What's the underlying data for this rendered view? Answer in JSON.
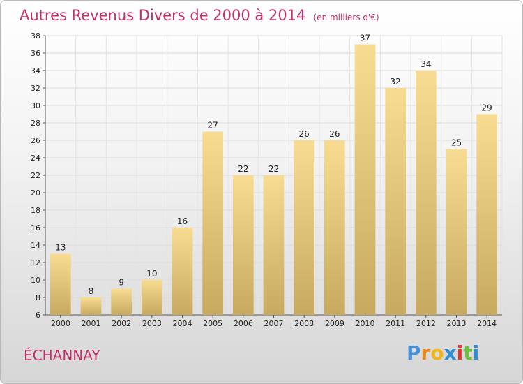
{
  "header": {
    "title": "Autres Revenus Divers de 2000 à 2014",
    "unit": "(en milliers d'€)"
  },
  "location": "ÉCHANNAY",
  "brand": {
    "letters": [
      "P",
      "r",
      "o",
      "x",
      "i",
      "t",
      "i"
    ],
    "colors": [
      "#4a90d9",
      "#e8891c",
      "#f2b519",
      "#2b8fd8",
      "#e8322b",
      "#6cbf3d",
      "#2b8fd8"
    ]
  },
  "chart_data": {
    "type": "bar",
    "categories": [
      "2000",
      "2001",
      "2002",
      "2003",
      "2004",
      "2005",
      "2006",
      "2007",
      "2008",
      "2009",
      "2010",
      "2011",
      "2012",
      "2013",
      "2014"
    ],
    "values": [
      13,
      8,
      9,
      10,
      16,
      27,
      22,
      22,
      26,
      26,
      37,
      32,
      34,
      25,
      29
    ],
    "ylim": [
      6,
      38
    ],
    "yticks": [
      6,
      8,
      10,
      12,
      14,
      16,
      18,
      20,
      22,
      24,
      26,
      28,
      30,
      32,
      34,
      36,
      38
    ],
    "grid": true,
    "bar_color": "#e8cf86"
  }
}
